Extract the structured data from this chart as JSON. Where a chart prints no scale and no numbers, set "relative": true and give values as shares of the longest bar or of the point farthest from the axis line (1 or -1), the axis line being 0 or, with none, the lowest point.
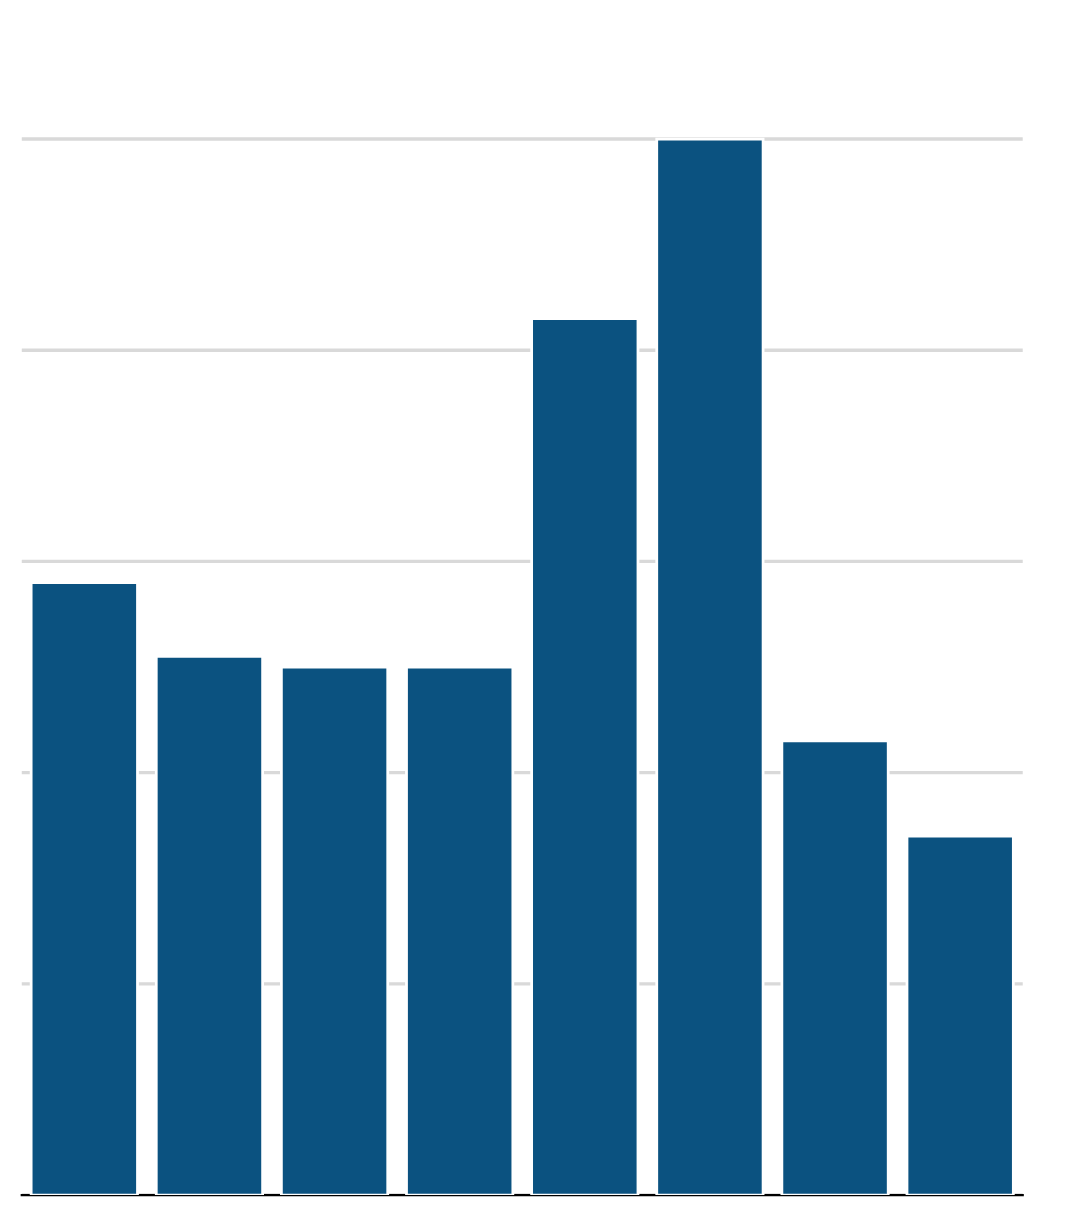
{
  "chart_data": {
    "type": "bar",
    "relative": true,
    "categories": [
      null,
      null,
      null,
      null,
      null,
      null,
      null,
      null
    ],
    "values": [
      0.58,
      0.51,
      0.5,
      0.5,
      0.83,
      1,
      0.43,
      0.34
    ],
    "color": "#0b5280",
    "grid": "y"
  }
}
